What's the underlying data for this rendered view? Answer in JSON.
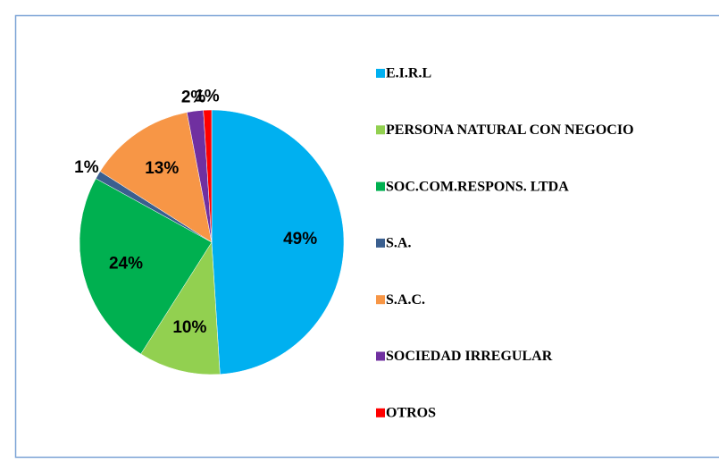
{
  "chart_data": {
    "type": "pie",
    "categories": [
      "E.I.R.L",
      "PERSONA NATURAL CON NEGOCIO",
      "SOC.COM.RESPONS. LTDA",
      "S.A.",
      "S.A.C.",
      "SOCIEDAD IRREGULAR",
      "OTROS"
    ],
    "values": [
      49,
      10,
      24,
      1,
      13,
      2,
      1
    ],
    "value_labels": [
      "49%",
      "10%",
      "24%",
      "1%",
      "13%",
      "2%",
      "1%"
    ],
    "colors": [
      "#00b0f0",
      "#92d050",
      "#00b050",
      "#3a5f8f",
      "#f79646",
      "#7030a0",
      "#ff0000"
    ],
    "legend": "right"
  }
}
